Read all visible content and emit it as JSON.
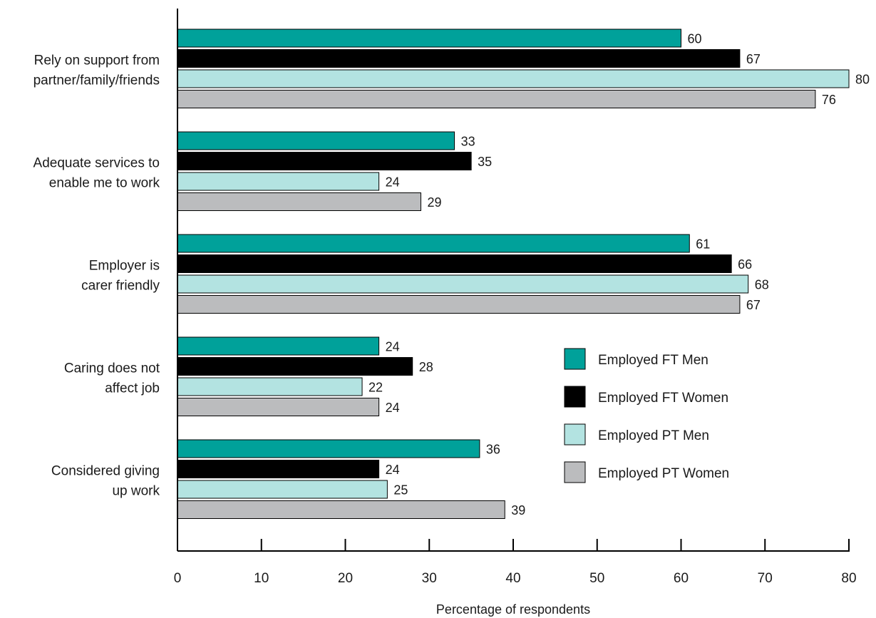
{
  "chart_data": {
    "type": "bar",
    "orientation": "horizontal",
    "categories": [
      [
        "Rely on support from",
        "partner/family/friends"
      ],
      [
        "Adequate services to",
        "enable me to work"
      ],
      [
        "Employer is",
        "carer friendly"
      ],
      [
        "Caring does not",
        "affect job"
      ],
      [
        "Considered giving",
        "up work"
      ]
    ],
    "series": [
      {
        "name": "Employed FT Men",
        "color": "#00a19a",
        "values": [
          60,
          33,
          61,
          24,
          36
        ]
      },
      {
        "name": "Employed FT Women",
        "color": "#000000",
        "values": [
          67,
          35,
          66,
          28,
          24
        ]
      },
      {
        "name": "Employed PT Men",
        "color": "#b3e3e1",
        "values": [
          80,
          24,
          68,
          22,
          25
        ]
      },
      {
        "name": "Employed PT Women",
        "color": "#bbbcbe",
        "values": [
          76,
          29,
          67,
          24,
          39
        ]
      }
    ],
    "xlabel": "Percentage of respondents",
    "ylabel": "",
    "xlim": [
      0,
      80
    ],
    "xticks": [
      0,
      10,
      20,
      30,
      40,
      50,
      60,
      70,
      80
    ],
    "legend_position": "right",
    "grid": false
  }
}
